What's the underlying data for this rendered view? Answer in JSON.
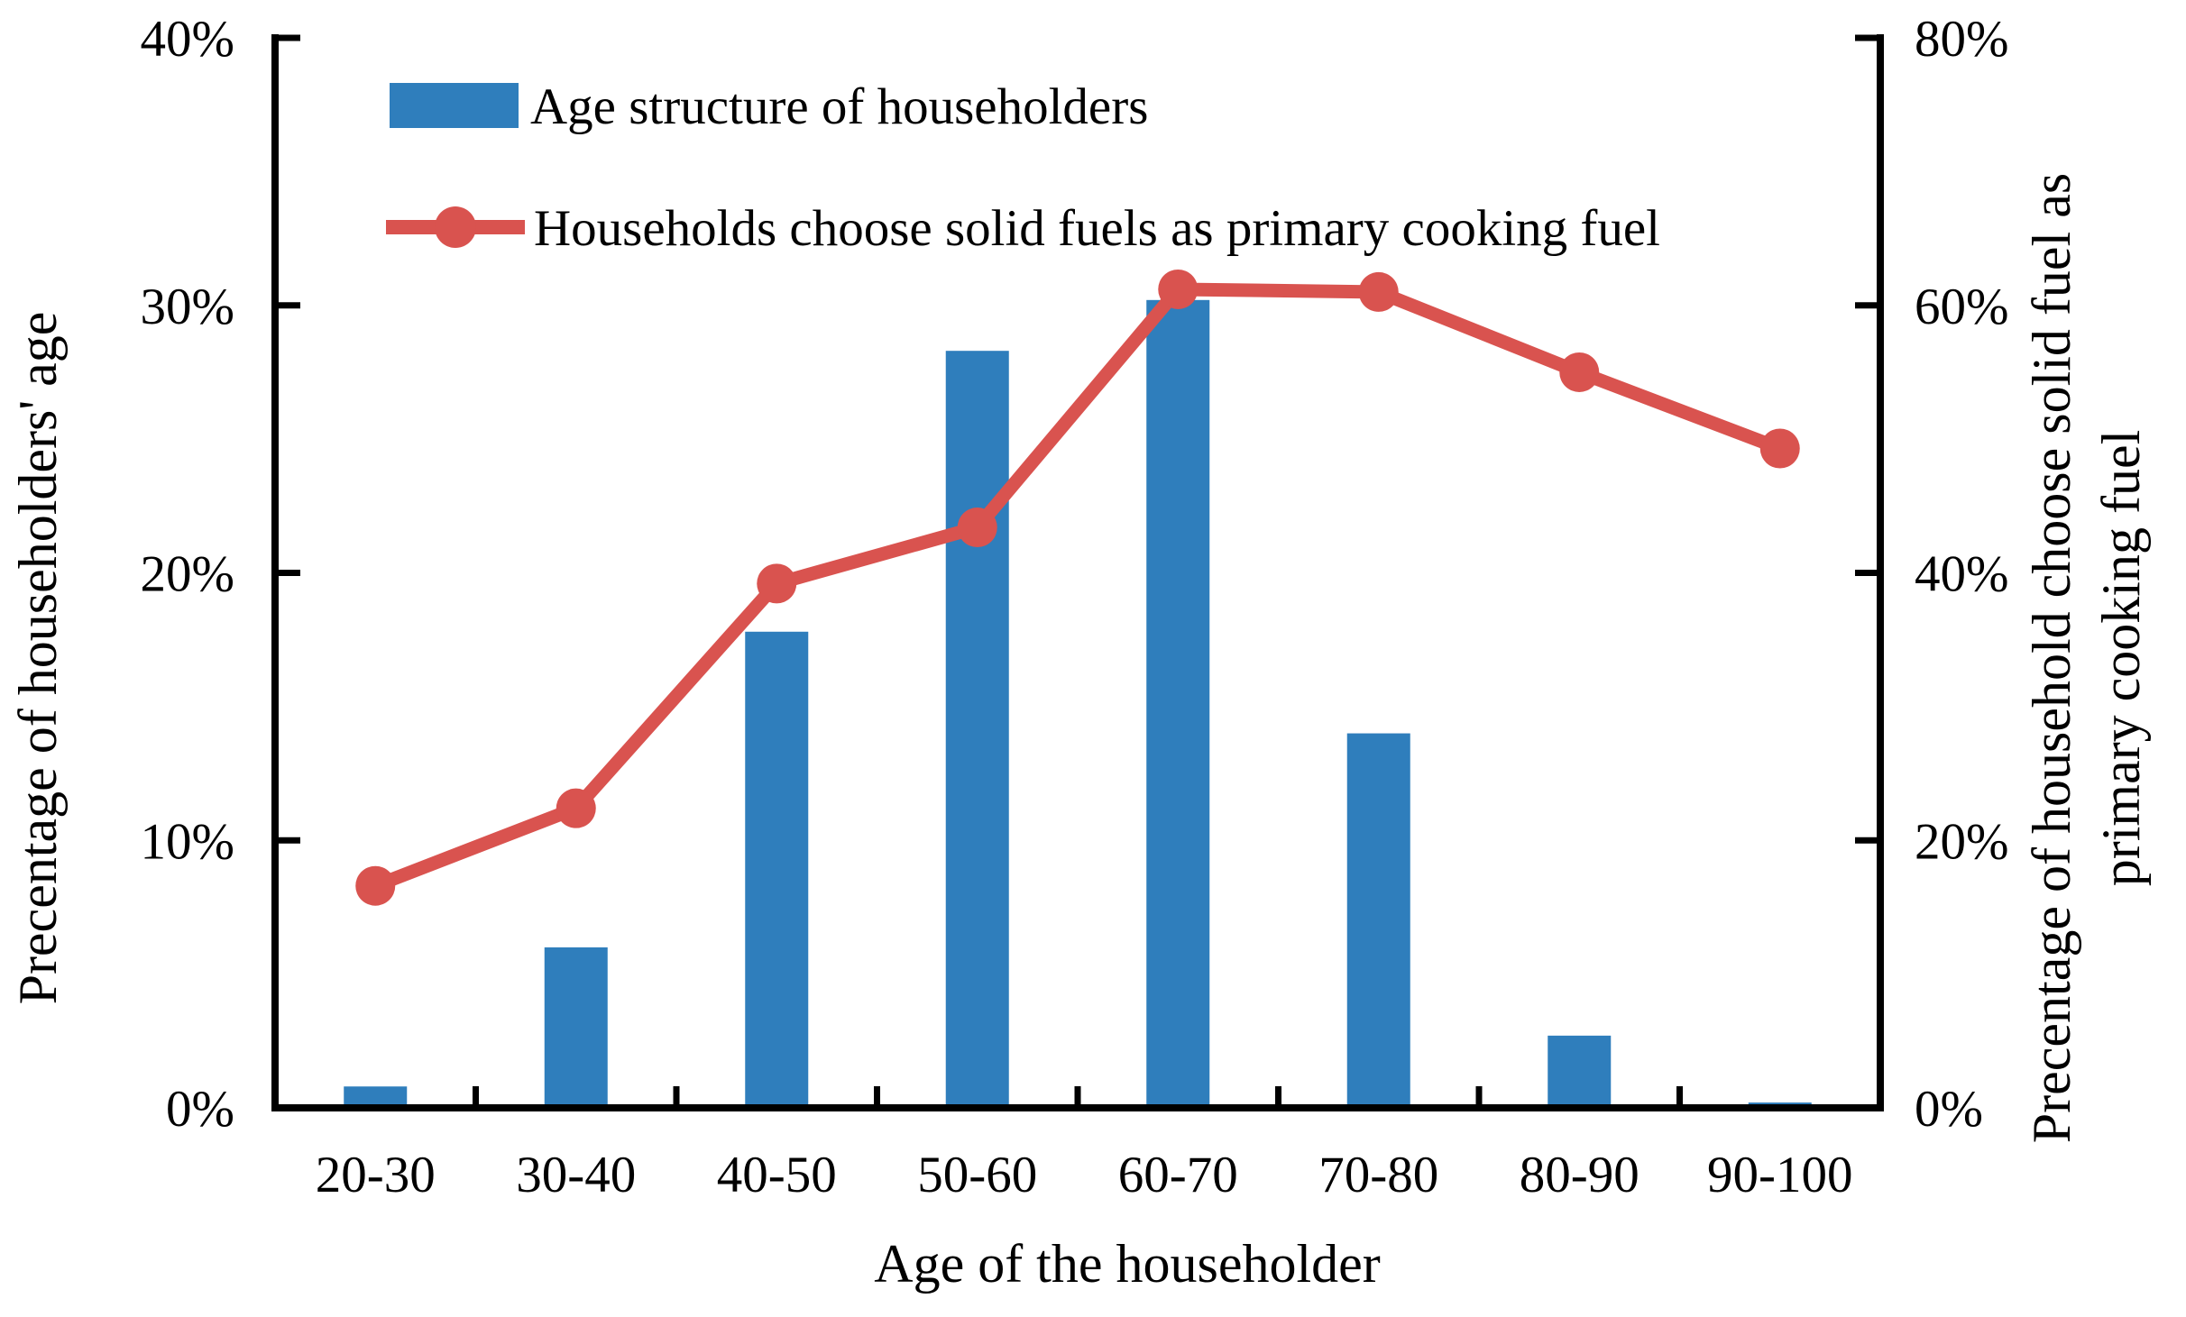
{
  "chart_data": {
    "type": "bar+line",
    "categories": [
      "20-30",
      "30-40",
      "40-50",
      "50-60",
      "60-70",
      "70-80",
      "80-90",
      "90-100"
    ],
    "series": [
      {
        "name": "Age structure of householders",
        "type": "bar",
        "axis": "left",
        "color": "#2F7EBC",
        "values": [
          0.8,
          6.0,
          17.8,
          28.3,
          30.2,
          14.0,
          2.7,
          0.2
        ]
      },
      {
        "name": "Households choose solid fuels as primary cooking fuel",
        "type": "line",
        "axis": "right",
        "color": "#D9534F",
        "values": [
          16.6,
          22.4,
          39.2,
          43.4,
          61.2,
          61.0,
          55.0,
          49.3
        ]
      }
    ],
    "left_axis": {
      "title": "Precentage of householders' age",
      "min": 0,
      "max": 40,
      "tick_values": [
        0,
        10,
        20,
        30,
        40
      ],
      "tick_labels": [
        "0%",
        "10%",
        "20%",
        "30%",
        "40%"
      ]
    },
    "right_axis": {
      "title_line1": "Precentage of household choose solid fuel as",
      "title_line2": "primary cooking fuel",
      "min": 0,
      "max": 80,
      "tick_values": [
        0,
        20,
        40,
        60,
        80
      ],
      "tick_labels": [
        "0%",
        "20%",
        "40%",
        "60%",
        "80%"
      ]
    },
    "x_axis": {
      "title": "Age of the householder"
    },
    "legend_position": "top-left-inside",
    "grid": false,
    "spine_color": "#000000"
  }
}
